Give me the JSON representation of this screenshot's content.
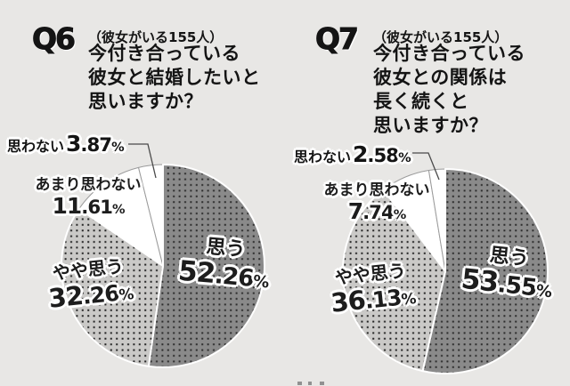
{
  "colors": {
    "background": "#e8e7e5",
    "dark_slice_base": "#8a8a8a",
    "dark_slice_dot": "#2c2c2c",
    "light_slice_base": "#cac9c7",
    "light_slice_dot": "#222222",
    "white_slice": "#ffffff",
    "white_slice_outline": "#9b9b9b",
    "slice_separator": "#ffffff",
    "leader_line": "#4a4a4a",
    "text": "#141414"
  },
  "chart_data": [
    {
      "type": "pie",
      "id": "Q6",
      "sample_note": "（彼女がいる155人）",
      "question": "今付き合っている彼女と結婚したいと思いますか？",
      "question_lines": [
        "今付き合っている",
        "彼女と結婚したいと",
        "思いますか？"
      ],
      "unit": "%",
      "start_angle_deg": 0,
      "direction": "clockwise",
      "categories": [
        "思う",
        "やや思う",
        "あまり思わない",
        "思わない"
      ],
      "values": [
        52.26,
        32.26,
        11.61,
        3.87
      ],
      "slices": [
        {
          "label": "思う",
          "value": 52.26,
          "int": "52",
          "dec": ".26",
          "style": "dark-dots"
        },
        {
          "label": "やや思う",
          "value": 32.26,
          "int": "32",
          "dec": ".26",
          "style": "light-dots"
        },
        {
          "label": "あまり思わない",
          "value": 11.61,
          "int": "11",
          "dec": ".61",
          "style": "white"
        },
        {
          "label": "思わない",
          "value": 3.87,
          "int": "3",
          "dec": ".87",
          "style": "white"
        }
      ]
    },
    {
      "type": "pie",
      "id": "Q7",
      "sample_note": "（彼女がいる155人）",
      "question": "今付き合っている彼女との関係は長く続くと思いますか？",
      "question_lines": [
        "今付き合っている",
        "彼女との関係は",
        "長く続くと",
        "思いますか？"
      ],
      "unit": "%",
      "start_angle_deg": 0,
      "direction": "clockwise",
      "categories": [
        "思う",
        "やや思う",
        "あまり思わない",
        "思わない"
      ],
      "values": [
        53.55,
        36.13,
        7.74,
        2.58
      ],
      "slices": [
        {
          "label": "思う",
          "value": 53.55,
          "int": "53",
          "dec": ".55",
          "style": "dark-dots"
        },
        {
          "label": "やや思う",
          "value": 36.13,
          "int": "36",
          "dec": ".13",
          "style": "light-dots"
        },
        {
          "label": "あまり思わない",
          "value": 7.74,
          "int": "7",
          "dec": ".74",
          "style": "white"
        },
        {
          "label": "思わない",
          "value": 2.58,
          "int": "2",
          "dec": ".58",
          "style": "white"
        }
      ]
    }
  ]
}
